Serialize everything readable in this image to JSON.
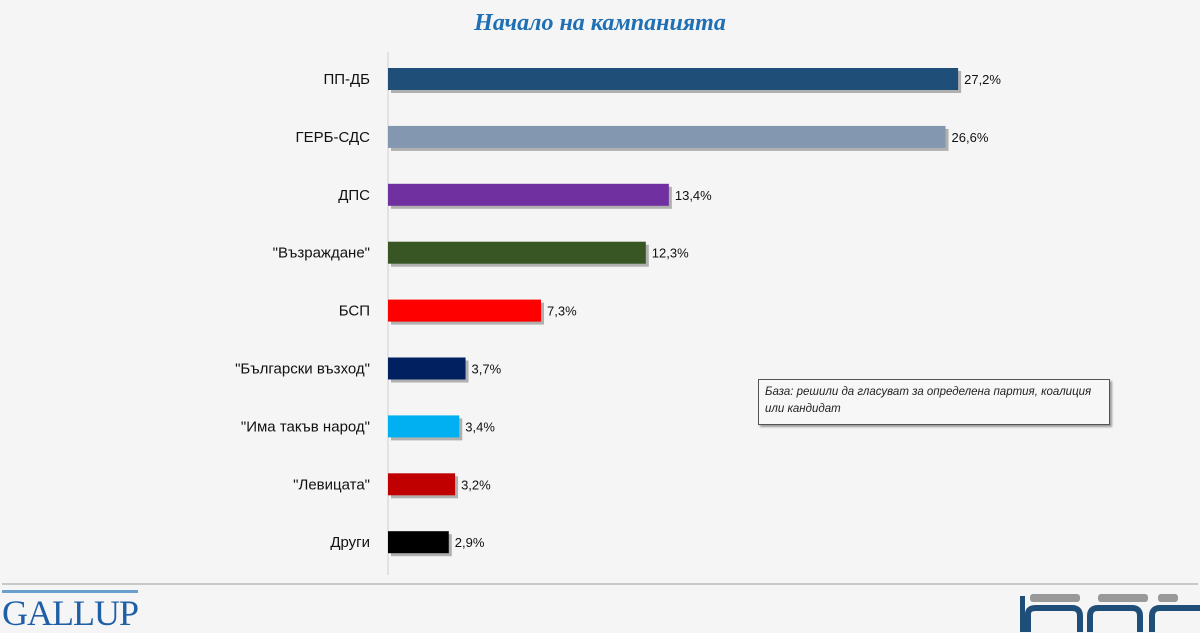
{
  "chart_data": {
    "type": "bar",
    "orientation": "horizontal",
    "subtitle": "Начало на кампанията",
    "categories": [
      "ПП-ДБ",
      "ГЕРБ-СДС",
      "ДПС",
      "\"Възраждане\"",
      "БСП",
      "\"Български възход\"",
      "\"Има такъв народ\"",
      "\"Левицата\"",
      "Други"
    ],
    "values": [
      27.2,
      26.6,
      13.4,
      12.3,
      7.3,
      3.7,
      3.4,
      3.2,
      2.9
    ],
    "data_labels": [
      "27,2%",
      "26,6%",
      "13,4%",
      "12,3%",
      "7,3%",
      "3,7%",
      "3,4%",
      "3,2%",
      "2,9%"
    ],
    "colors": [
      "#1f4e79",
      "#8497b0",
      "#7030a0",
      "#375623",
      "#ff0000",
      "#002060",
      "#00b0f0",
      "#c00000",
      "#000000"
    ],
    "xlim": [
      0,
      30
    ],
    "grid": false,
    "note": "База: решили да гласуват за определена партия, коалиция или кандидат"
  },
  "logos": {
    "left": "GALLUP",
    "right": "БНР"
  }
}
